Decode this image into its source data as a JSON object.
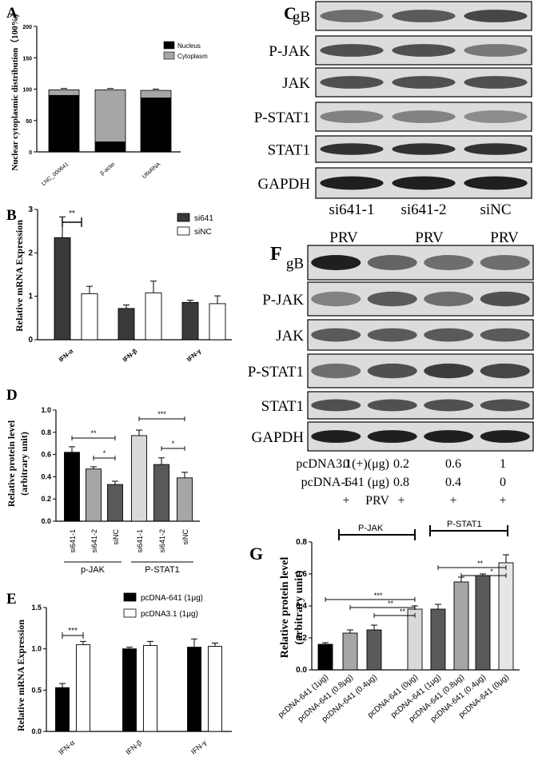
{
  "panels": {
    "A": {
      "letter": "A",
      "ylabel": "Nuclear cytoplasmic distribution（100%）",
      "chart_data": {
        "type": "bar",
        "stacked": true,
        "categories": [
          "LNC_000641",
          "β-actin",
          "U6sRNA"
        ],
        "series": [
          {
            "name": "Nucleus",
            "values": [
              90,
              16,
              86
            ],
            "color": "#000000"
          },
          {
            "name": "Cytoplasm",
            "values": [
              9,
              83,
              12
            ],
            "color": "#a6a6a6"
          }
        ],
        "ylim": [
          0,
          200
        ],
        "yticks": [
          0,
          50,
          100,
          150,
          200
        ],
        "legend": "top-right"
      }
    },
    "B": {
      "letter": "B",
      "ylabel": "Relative mRNA Expression",
      "chart_data": {
        "type": "bar",
        "categories": [
          "IFN-α",
          "IFN-β",
          "IFN-γ"
        ],
        "series": [
          {
            "name": "si641",
            "values": [
              2.35,
              0.72,
              0.86
            ],
            "errors": [
              0.48,
              0.08,
              0.05
            ],
            "color": "#3a3a3a"
          },
          {
            "name": "siNC",
            "values": [
              1.06,
              1.08,
              0.83
            ],
            "errors": [
              0.17,
              0.27,
              0.18
            ],
            "color": "#ffffff"
          }
        ],
        "ylim": [
          0,
          3
        ],
        "yticks": [
          0,
          1,
          2,
          3
        ],
        "significance": [
          {
            "label": "**",
            "category": "IFN-α"
          }
        ],
        "legend": "top-right"
      }
    },
    "C": {
      "letter": "C",
      "rows": [
        "gB",
        "P-JAK",
        "JAK",
        "P-STAT1",
        "STAT1",
        "GAPDH"
      ],
      "lanes": [
        "si641-1",
        "si641-2",
        "siNC"
      ]
    },
    "D": {
      "letter": "D",
      "ylabel": "Relative protein level (arbitrary unit)",
      "group_labels": [
        "p-JAK",
        "P-STAT1"
      ],
      "chart_data": {
        "type": "bar",
        "categories": [
          "si641-1",
          "si641-2",
          "siNC",
          "si641-1",
          "si641-2",
          "siNC"
        ],
        "values": [
          0.62,
          0.47,
          0.33,
          0.77,
          0.51,
          0.39
        ],
        "errors": [
          0.05,
          0.02,
          0.03,
          0.05,
          0.06,
          0.05
        ],
        "colors": [
          "#000000",
          "#a6a6a6",
          "#595959",
          "#d9d9d9",
          "#595959",
          "#a6a6a6"
        ],
        "ylim": [
          0,
          1.0
        ],
        "yticks": [
          "0.0",
          "0.2",
          "0.4",
          "0.6",
          "0.8",
          "1.0"
        ],
        "significance": [
          {
            "label": "**",
            "from": 0,
            "to": 2
          },
          {
            "label": "*",
            "from": 1,
            "to": 2
          },
          {
            "label": "***",
            "from": 3,
            "to": 5
          },
          {
            "label": "*",
            "from": 4,
            "to": 5
          }
        ]
      }
    },
    "E": {
      "letter": "E",
      "ylabel": "Relative mRNA Expression",
      "chart_data": {
        "type": "bar",
        "categories": [
          "IFN-α",
          "IFN-β",
          "IFN-γ"
        ],
        "series": [
          {
            "name": "pcDNA-641 (1μg)",
            "values": [
              0.53,
              1.0,
              1.02
            ],
            "errors": [
              0.05,
              0.02,
              0.1
            ],
            "color": "#000000"
          },
          {
            "name": "pcDNA3.1 (1μg)",
            "values": [
              1.05,
              1.04,
              1.03
            ],
            "errors": [
              0.04,
              0.05,
              0.04
            ],
            "color": "#ffffff"
          }
        ],
        "ylim": [
          0,
          1.5
        ],
        "yticks": [
          "0.0",
          "0.5",
          "1.0",
          "1.5"
        ],
        "significance": [
          {
            "label": "***",
            "category": "IFN-α"
          }
        ],
        "legend": "top-right"
      }
    },
    "F": {
      "letter": "F",
      "treatment_label": "PRV",
      "header": [
        "PRV",
        "PRV",
        "PRV"
      ],
      "rows": [
        "gB",
        "P-JAK",
        "JAK",
        "P-STAT1",
        "STAT1",
        "GAPDH"
      ],
      "conditions": [
        {
          "label": "pcDNA3.1(+)(μg)",
          "values": [
            "0",
            "0.2",
            "0.6",
            "1"
          ]
        },
        {
          "label": "pcDNA-641 (μg)",
          "values": [
            "1",
            "0.8",
            "0.4",
            "0"
          ]
        },
        {
          "label": "PRV",
          "values": [
            "+",
            "+",
            "+",
            "+"
          ]
        }
      ]
    },
    "G": {
      "letter": "G",
      "ylabel": "Relative protein level (arbitrary unit)",
      "group_labels": [
        "P-JAK",
        "P-STAT1"
      ],
      "chart_data": {
        "type": "bar",
        "categories": [
          "pcDNA-641 (1μg)",
          "pcDNA-641 (0.8μg)",
          "pcDNA-641 (0.4μg)",
          "pcDNA-641 (0μg)",
          "pcDNA-641 (1μg)",
          "pcDNA-641 (0.8μg)",
          "pcDNA-641 (0.4μg)",
          "pcDNA-641 (0μg)"
        ],
        "values": [
          0.16,
          0.23,
          0.25,
          0.38,
          0.38,
          0.55,
          0.59,
          0.67
        ],
        "errors": [
          0.01,
          0.02,
          0.03,
          0.02,
          0.03,
          0.03,
          0.01,
          0.05
        ],
        "colors": [
          "#000000",
          "#a6a6a6",
          "#595959",
          "#d9d9d9",
          "#595959",
          "#a6a6a6",
          "#595959",
          "#e6e6e6"
        ],
        "ylim": [
          0,
          0.8
        ],
        "yticks": [
          "0.0",
          "0.2",
          "0.4",
          "0.6",
          "0.8"
        ],
        "significance": [
          {
            "label": "***",
            "from": 0,
            "to": 3
          },
          {
            "label": "**",
            "from": 1,
            "to": 3
          },
          {
            "label": "**",
            "from": 2,
            "to": 3
          },
          {
            "label": "**",
            "from": 4,
            "to": 7
          },
          {
            "label": "*",
            "from": 5,
            "to": 7
          }
        ]
      }
    }
  }
}
